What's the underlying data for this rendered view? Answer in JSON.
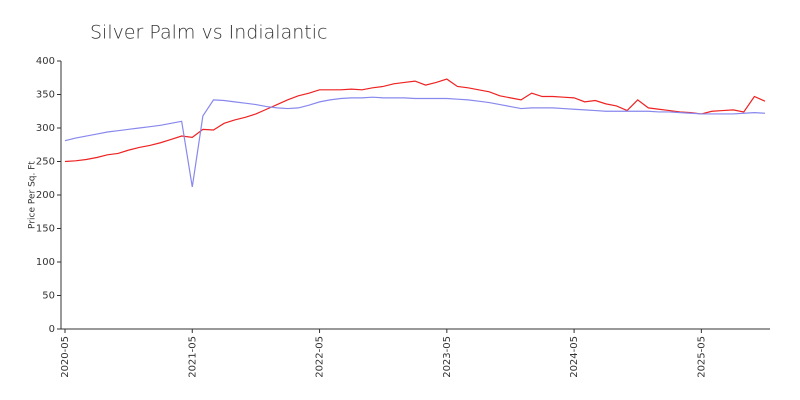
{
  "chart_data": {
    "type": "line",
    "title": "Silver Palm vs Indialantic",
    "y_label": "Price Per Sq. Ft",
    "x": [
      "2020-05",
      "2020-06",
      "2020-07",
      "2020-08",
      "2020-09",
      "2020-10",
      "2020-11",
      "2020-12",
      "2021-01",
      "2021-02",
      "2021-03",
      "2021-04",
      "2021-05",
      "2021-06",
      "2021-07",
      "2021-08",
      "2021-09",
      "2021-10",
      "2021-11",
      "2021-12",
      "2022-01",
      "2022-02",
      "2022-03",
      "2022-04",
      "2022-05",
      "2022-06",
      "2022-07",
      "2022-08",
      "2022-09",
      "2022-10",
      "2022-11",
      "2022-12",
      "2023-01",
      "2023-02",
      "2023-03",
      "2023-04",
      "2023-05",
      "2023-06",
      "2023-07",
      "2023-08",
      "2023-09",
      "2023-10",
      "2023-11",
      "2023-12",
      "2024-01",
      "2024-02",
      "2024-03",
      "2024-04",
      "2024-05",
      "2024-06",
      "2024-07",
      "2024-08",
      "2024-09",
      "2024-10",
      "2024-11",
      "2024-12",
      "2025-01",
      "2025-02",
      "2025-03",
      "2025-04",
      "2025-05",
      "2025-06",
      "2025-07",
      "2025-08",
      "2025-09",
      "2025-10",
      "2025-11"
    ],
    "series": [
      {
        "color": "#ee2222",
        "values": [
          250,
          251,
          253,
          256,
          260,
          262,
          267,
          271,
          274,
          278,
          283,
          288,
          286,
          298,
          297,
          307,
          312,
          316,
          321,
          328,
          335,
          342,
          348,
          352,
          357,
          357,
          357,
          358,
          357,
          360,
          362,
          366,
          368,
          370,
          364,
          368,
          373,
          362,
          360,
          357,
          354,
          348,
          345,
          342,
          352,
          347,
          347,
          346,
          345,
          339,
          341,
          336,
          333,
          326,
          342,
          330,
          328,
          326,
          324,
          323,
          321,
          325,
          326,
          327,
          324,
          347,
          340
        ]
      },
      {
        "color": "#8888ee",
        "values": [
          281,
          285,
          288,
          291,
          294,
          296,
          298,
          300,
          302,
          304,
          307,
          310,
          212,
          318,
          342,
          341,
          339,
          337,
          335,
          332,
          330,
          329,
          330,
          334,
          339,
          342,
          344,
          345,
          345,
          346,
          345,
          345,
          345,
          344,
          344,
          344,
          344,
          343,
          342,
          340,
          338,
          335,
          332,
          329,
          330,
          330,
          330,
          329,
          328,
          327,
          326,
          325,
          325,
          325,
          325,
          325,
          324,
          324,
          323,
          322,
          321,
          321,
          321,
          321,
          322,
          323,
          322
        ]
      }
    ],
    "xlim": [
      "2020-05",
      "2025-11"
    ],
    "xticks": [
      "2020-05",
      "2021-05",
      "2022-05",
      "2023-05",
      "2024-05",
      "2025-05"
    ],
    "ylim": [
      0,
      400
    ],
    "yticks": [
      0,
      50,
      100,
      150,
      200,
      250,
      300,
      350,
      400
    ],
    "grid": false
  }
}
